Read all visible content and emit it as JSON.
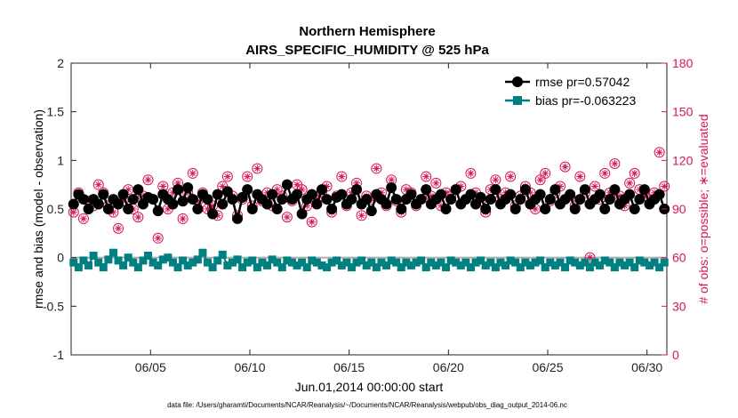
{
  "chart_data": {
    "type": "line",
    "title": "Northern Hemisphere",
    "subtitle": "AIRS_SPECIFIC_HUMIDITY @ 525 hPa",
    "xlabel": "Jun.01,2014 00:00:00 start",
    "ylabel": "rmse and bias (model - observation)",
    "y2label": "# of obs: o=possible; ∗=evaluated",
    "footnote": "data file: /Users/gharamti/Documents/NCAR/Reanalysis/~/Documents/NCAR/Reanalysis/webpub/obs_diag_output_2014-06.nc",
    "x_ticks": [
      "06/05",
      "06/10",
      "06/15",
      "06/20",
      "06/25",
      "06/30"
    ],
    "x_tick_days": [
      5,
      10,
      15,
      20,
      25,
      30
    ],
    "xlim_days": [
      1,
      31
    ],
    "y_ticks": [
      "-1",
      "-0.5",
      "0",
      "0.5",
      "1",
      "1.5",
      "2"
    ],
    "ylim": [
      -1,
      2
    ],
    "y2_ticks": [
      "0",
      "30",
      "60",
      "90",
      "120",
      "150",
      "180"
    ],
    "y2lim": [
      0,
      180
    ],
    "grid": false,
    "legend_position": "top-right",
    "colors": {
      "rmse": "#000000",
      "bias": "#008080",
      "obs": "#d4145a",
      "zero": "#b0b0b0"
    },
    "series": [
      {
        "name": "rmse pr=0.57042",
        "axis": "left",
        "values": [
          0.55,
          0.65,
          0.6,
          0.5,
          0.6,
          0.55,
          0.65,
          0.5,
          0.6,
          0.55,
          0.65,
          0.5,
          0.6,
          0.7,
          0.55,
          0.62,
          0.6,
          0.48,
          0.65,
          0.6,
          0.55,
          0.7,
          0.58,
          0.72,
          0.6,
          0.5,
          0.65,
          0.6,
          0.45,
          0.65,
          0.55,
          0.68,
          0.6,
          0.4,
          0.62,
          0.7,
          0.5,
          0.65,
          0.6,
          0.55,
          0.65,
          0.5,
          0.6,
          0.75,
          0.6,
          0.65,
          0.45,
          0.6,
          0.65,
          0.55,
          0.7,
          0.6,
          0.5,
          0.62,
          0.65,
          0.55,
          0.6,
          0.7,
          0.55,
          0.6,
          0.48,
          0.65,
          0.6,
          0.55,
          0.72,
          0.6,
          0.5,
          0.6,
          0.65,
          0.55,
          0.6,
          0.7,
          0.55,
          0.6,
          0.65,
          0.5,
          0.6,
          0.7,
          0.55,
          0.6,
          0.65,
          0.55,
          0.62,
          0.5,
          0.6,
          0.7,
          0.55,
          0.6,
          0.65,
          0.5,
          0.6,
          0.7,
          0.55,
          0.6,
          0.65,
          0.5,
          0.6,
          0.7,
          0.55,
          0.6,
          0.65,
          0.5,
          0.6,
          0.7,
          0.55,
          0.6,
          0.65,
          0.5,
          0.6,
          0.7,
          0.55,
          0.6,
          0.65,
          0.5,
          0.6,
          0.7,
          0.55,
          0.6,
          0.65,
          0.5
        ]
      },
      {
        "name": "bias pr=-0.063223",
        "axis": "left",
        "values": [
          -0.05,
          -0.1,
          -0.03,
          -0.08,
          0.02,
          -0.05,
          -0.1,
          -0.02,
          0.05,
          -0.03,
          -0.08,
          0.0,
          -0.05,
          -0.1,
          -0.03,
          0.02,
          -0.05,
          -0.08,
          -0.02,
          0.0,
          -0.05,
          -0.1,
          -0.03,
          -0.08,
          -0.05,
          -0.02,
          0.05,
          -0.05,
          -0.1,
          -0.03,
          0.03,
          -0.08,
          -0.05,
          -0.02,
          -0.1,
          -0.05,
          -0.03,
          -0.1,
          -0.05,
          -0.08,
          -0.02,
          -0.05,
          -0.1,
          -0.03,
          -0.05,
          -0.08,
          -0.05,
          -0.1,
          -0.03,
          -0.05,
          -0.08,
          -0.1,
          -0.05,
          -0.03,
          -0.08,
          -0.05,
          -0.1,
          -0.05,
          -0.03,
          -0.08,
          -0.05,
          -0.1,
          -0.05,
          -0.08,
          -0.03,
          -0.05,
          -0.1,
          -0.05,
          -0.08,
          -0.05,
          -0.03,
          -0.1,
          -0.05,
          -0.08,
          -0.05,
          -0.1,
          -0.03,
          -0.05,
          -0.08,
          -0.05,
          -0.1,
          -0.05,
          -0.03,
          -0.08,
          -0.05,
          -0.1,
          -0.05,
          -0.08,
          -0.03,
          -0.05,
          -0.1,
          -0.05,
          -0.08,
          -0.05,
          -0.03,
          -0.1,
          -0.05,
          -0.08,
          -0.05,
          -0.1,
          -0.03,
          -0.05,
          -0.08,
          -0.05,
          -0.1,
          -0.05,
          -0.08,
          -0.03,
          -0.05,
          -0.1,
          -0.05,
          -0.08,
          -0.05,
          -0.1,
          -0.03,
          -0.05,
          -0.08,
          -0.05,
          -0.1,
          -0.05
        ]
      },
      {
        "name": "# of obs",
        "axis": "right",
        "values": [
          88,
          100,
          84,
          95,
          92,
          105,
          100,
          92,
          88,
          78,
          95,
          102,
          90,
          85,
          98,
          108,
          96,
          72,
          104,
          90,
          100,
          106,
          84,
          100,
          112,
          95,
          100,
          90,
          92,
          86,
          104,
          110,
          98,
          86,
          96,
          110,
          92,
          115,
          95,
          100,
          92,
          102,
          98,
          85,
          95,
          105,
          102,
          92,
          82,
          96,
          100,
          104,
          88,
          98,
          110,
          92,
          100,
          106,
          86,
          98,
          96,
          115,
          100,
          92,
          108,
          95,
          88,
          102,
          100,
          92,
          96,
          110,
          98,
          106,
          92,
          100,
          98,
          102,
          104,
          96,
          112,
          100,
          95,
          88,
          102,
          108,
          96,
          100,
          110,
          92,
          98,
          104,
          100,
          90,
          108,
          112,
          95,
          100,
          104,
          116,
          98,
          92,
          110,
          100,
          60,
          104,
          96,
          112,
          100,
          118,
          98,
          92,
          106,
          112,
          102,
          98,
          96,
          100,
          125,
          104
        ]
      }
    ]
  }
}
